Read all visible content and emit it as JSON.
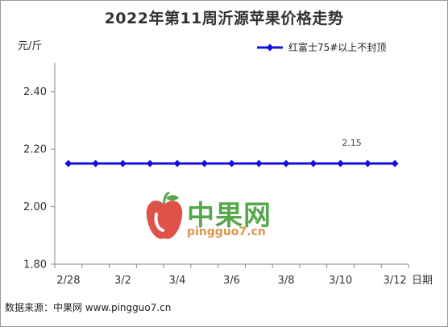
{
  "chart_data": {
    "type": "line",
    "title": "2022年第11周沂源苹果价格走势",
    "ylabel": "元/斤",
    "xlabel": "日期",
    "categories": [
      "2/28",
      "3/1",
      "3/2",
      "3/3",
      "3/4",
      "3/5",
      "3/6",
      "3/7",
      "3/8",
      "3/9",
      "3/10",
      "3/11",
      "3/12"
    ],
    "x_tick_labels": [
      "2/28",
      "3/2",
      "3/4",
      "3/6",
      "3/8",
      "3/10",
      "3/12"
    ],
    "y_ticks": [
      "1.80",
      "2.00",
      "2.20",
      "2.40"
    ],
    "ylim": [
      1.8,
      2.5
    ],
    "series": [
      {
        "name": "红富士75#以上不封顶",
        "color": "#1010e0",
        "values": [
          2.15,
          2.15,
          2.15,
          2.15,
          2.15,
          2.15,
          2.15,
          2.15,
          2.15,
          2.15,
          2.15,
          2.15,
          2.15
        ]
      }
    ],
    "annotations": [
      {
        "category": "3/10",
        "text": "2.15"
      }
    ],
    "legend_position": "top-right",
    "grid": false
  },
  "source_note": "数据来源：中果网 www.pingguo7.cn",
  "watermark": {
    "cn": "中果网",
    "en": "pingguo7.cn"
  }
}
